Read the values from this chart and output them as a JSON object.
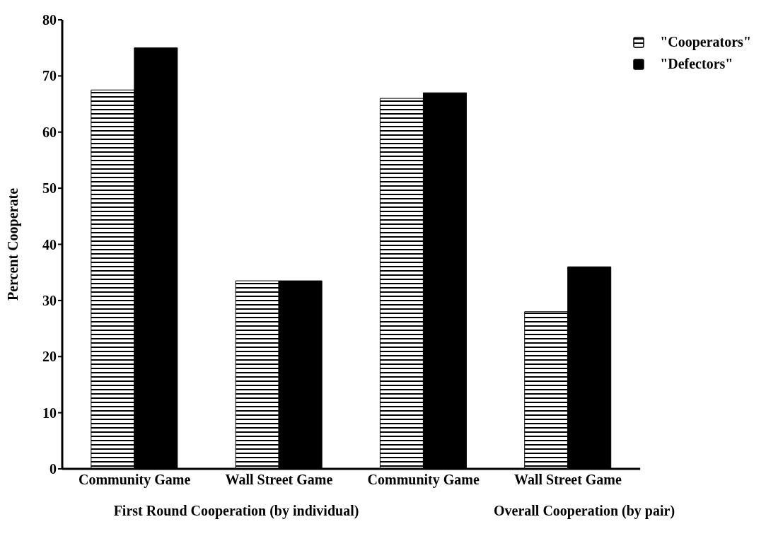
{
  "chart_data": {
    "type": "bar",
    "ylabel": "Percent Cooperate",
    "categories": [
      "Community Game",
      "Wall Street Game",
      "Community Game",
      "Wall Street Game"
    ],
    "series": [
      {
        "name": "\"Cooperators\"",
        "color": "#000000",
        "values": [
          67.5,
          33.5,
          66,
          28
        ]
      },
      {
        "name": "\"Defectors\"",
        "color": "#000000",
        "values": [
          75,
          33.5,
          67,
          36
        ]
      }
    ],
    "ylim": [
      0,
      80
    ],
    "yticks": [
      0,
      10,
      20,
      30,
      40,
      50,
      60,
      70,
      80
    ],
    "grid": false,
    "legend": "top right",
    "annotations": [
      "First Round Cooperation (by individual)",
      "Overall Cooperation (by pair)"
    ]
  }
}
